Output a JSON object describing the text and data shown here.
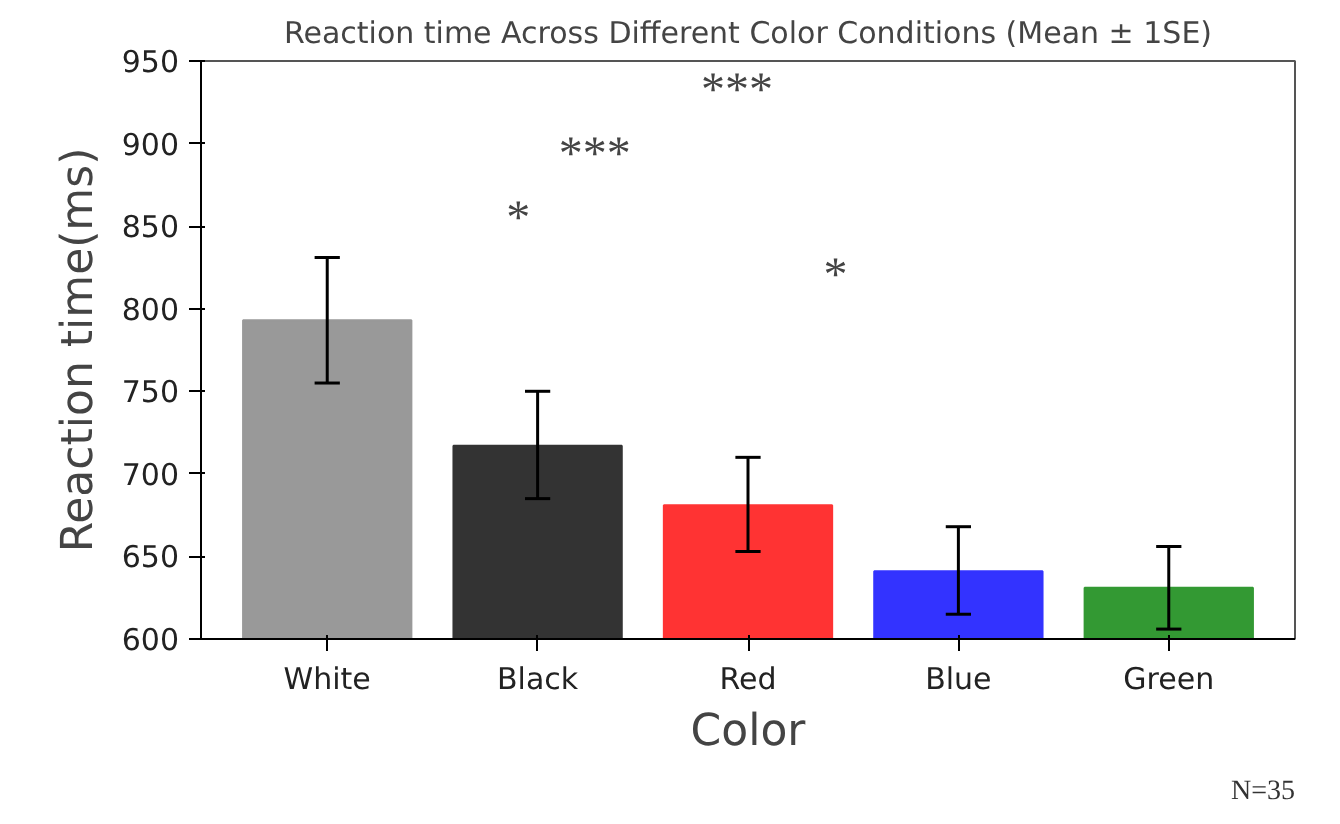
{
  "chart_data": {
    "type": "bar",
    "title": "Reaction time Across Different Color Conditions (Mean ± 1SE)",
    "xlabel": "Color",
    "ylabel": "Reaction time(ms)",
    "categories": [
      "White",
      "Black",
      "Red",
      "Blue",
      "Green"
    ],
    "values": [
      793,
      717,
      681,
      641,
      631
    ],
    "colors": [
      "#999999",
      "#333333",
      "#ff3333",
      "#3333ff",
      "#339933"
    ],
    "errors": [
      [
        755,
        831
      ],
      [
        685,
        750
      ],
      [
        653,
        710
      ],
      [
        615,
        668
      ],
      [
        606,
        656
      ]
    ],
    "ylim": [
      600,
      950
    ],
    "yticks": [
      600,
      650,
      700,
      750,
      800,
      850,
      900,
      950
    ],
    "grid": false,
    "annotations": [
      "***",
      "***",
      "*",
      "*",
      "N=35"
    ]
  }
}
